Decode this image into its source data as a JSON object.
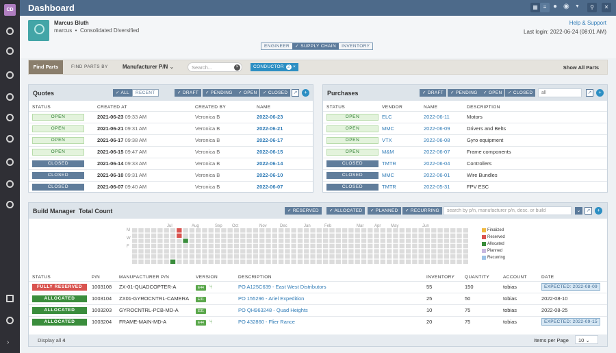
{
  "app": {
    "logo": "CD",
    "title": "Dashboard"
  },
  "nav": {
    "icons": [
      "gauge-icon",
      "biohazard-icon",
      "components-icon",
      "target-icon",
      "back-circle-icon",
      "wrench-circle-icon",
      "info-icon",
      "dollar-icon",
      "forward-circle-icon"
    ],
    "bottom": [
      "home-icon",
      "settings-icon"
    ]
  },
  "user": {
    "name": "Marcus Bluth",
    "handle": "marcus",
    "company": "Consolidated Diversified",
    "help": "Help & Support",
    "last_login": "Last login: 2022-06-24 (08:01 AM)"
  },
  "segments": [
    {
      "label": "ENGINEER",
      "on": false
    },
    {
      "label": "✓ SUPPLY CHAIN",
      "on": true
    },
    {
      "label": "INVENTORY",
      "on": false
    }
  ],
  "find": {
    "button": "Find Parts",
    "by_label": "FIND PARTS BY",
    "by_value": "Manufacturer P/N",
    "search_placeholder": "Search...",
    "chip": "CONDUCTOR",
    "chip_count": "2",
    "show_all": "Show All Parts"
  },
  "quotes": {
    "title": "Quotes",
    "toggle": [
      "✓ ALL",
      "RECENT"
    ],
    "filters": [
      "✓ DRAFT",
      "✓ PENDING",
      "✓ OPEN",
      "✓ CLOSED"
    ],
    "columns": [
      "STATUS",
      "CREATED AT",
      "CREATED BY",
      "NAME"
    ],
    "rows": [
      {
        "status": "OPEN",
        "date": "2021-06-23",
        "time": "09:33 AM",
        "by": "Veronica B",
        "name": "2022-06-23"
      },
      {
        "status": "OPEN",
        "date": "2021-06-21",
        "time": "09:31 AM",
        "by": "Veronica B",
        "name": "2022-06-21"
      },
      {
        "status": "OPEN",
        "date": "2021-06-17",
        "time": "09:38 AM",
        "by": "Veronica B",
        "name": "2022-06-17"
      },
      {
        "status": "OPEN",
        "date": "2021-06-15",
        "time": "09:47 AM",
        "by": "Veronica B",
        "name": "2022-06-15"
      },
      {
        "status": "CLOSED",
        "date": "2021-06-14",
        "time": "09:33 AM",
        "by": "Veronica B",
        "name": "2022-06-14"
      },
      {
        "status": "CLOSED",
        "date": "2021-06-10",
        "time": "09:31 AM",
        "by": "Veronica B",
        "name": "2022-06-10"
      },
      {
        "status": "CLOSED",
        "date": "2021-06-07",
        "time": "09:40 AM",
        "by": "Veronica B",
        "name": "2022-06-07"
      }
    ]
  },
  "purchases": {
    "title": "Purchases",
    "filters": [
      "✓ DRAFT",
      "✓ PENDING",
      "✓ OPEN",
      "✓ CLOSED"
    ],
    "search_value": "all",
    "columns": [
      "STATUS",
      "VENDOR",
      "NAME",
      "DESCRIPTION"
    ],
    "rows": [
      {
        "status": "OPEN",
        "vendor": "ELC",
        "name": "2022-06-11",
        "desc": "Motors"
      },
      {
        "status": "OPEN",
        "vendor": "MMC",
        "name": "2022-06-09",
        "desc": "Drivers and Belts"
      },
      {
        "status": "OPEN",
        "vendor": "VTX",
        "name": "2022-06-08",
        "desc": "Gyro equipment"
      },
      {
        "status": "OPEN",
        "vendor": "M&M",
        "name": "2022-06-07",
        "desc": "Frame components"
      },
      {
        "status": "CLOSED",
        "vendor": "TMTR",
        "name": "2022-06-04",
        "desc": "Controllers"
      },
      {
        "status": "CLOSED",
        "vendor": "MMC",
        "name": "2022-06-01",
        "desc": "Wire Bundles"
      },
      {
        "status": "CLOSED",
        "vendor": "TMTR",
        "name": "2022-05-31",
        "desc": "FPV ESC"
      }
    ]
  },
  "build": {
    "title": "Build Manager",
    "subtitle": "Total Count",
    "filters": [
      "✓ RESERVED",
      "✓ ALLOCATED",
      "✓ PLANNED",
      "✓ RECURRING"
    ],
    "search_placeholder": "search by p/n, manufacturer p/n, desc. or build",
    "months": [
      "Jul",
      "Aug",
      "Sep",
      "Oct",
      "Nov",
      "Dec",
      "Jan",
      "Feb",
      "Mar",
      "Apr",
      "May",
      "Jun"
    ],
    "days": [
      "M",
      "W",
      "F"
    ],
    "legend": [
      {
        "label": "Finalized",
        "color": "#f0b840"
      },
      {
        "label": "Reserved",
        "color": "#d9534f"
      },
      {
        "label": "Allocated",
        "color": "#3a8d3c"
      },
      {
        "label": "Planned",
        "color": "#c7b8e0"
      },
      {
        "label": "Recurring",
        "color": "#9cc3e6"
      }
    ],
    "columns": [
      "STATUS",
      "P/N",
      "MANUFACTURER P/N",
      "VERSION",
      "DESCRIPTION",
      "INVENTORY",
      "QUANTITY",
      "ACCOUNT",
      "DATE"
    ],
    "rows": [
      {
        "status": "FULLY RESERVED",
        "pn": "1003108",
        "mpn": "ZX-01-QUADCOPTER-A",
        "ver": "E44",
        "desc": "PO A125C639 - East West Distributors",
        "inv": "55",
        "qty": "150",
        "acct": "tobias",
        "date": "EXPECTED: 2022-08-09"
      },
      {
        "status": "ALLOCATED",
        "pn": "1003104",
        "mpn": "ZX01-GYROCNTRL-CAMERA",
        "ver": "E31",
        "desc": "PO 155296 - Ariel Expedition",
        "inv": "25",
        "qty": "50",
        "acct": "tobias",
        "date": "2022-08-10"
      },
      {
        "status": "ALLOCATED",
        "pn": "1003203",
        "mpn": "GYROCNTRL-PCB-MD-A",
        "ver": "E31",
        "desc": "PO QH963248 - Quad Heights",
        "inv": "10",
        "qty": "75",
        "acct": "tobias",
        "date": "2022-08-25"
      },
      {
        "status": "ALLOCATED",
        "pn": "1003204",
        "mpn": "FRAME-MAIN-MD-A",
        "ver": "E44",
        "desc": "PO 432860 - Flier Rance",
        "inv": "20",
        "qty": "75",
        "acct": "tobias",
        "date": "EXPECTED: 2022-09-15"
      }
    ],
    "display_label": "Display all",
    "display_count": "4",
    "per_page_label": "Items per Page",
    "per_page": "10"
  }
}
